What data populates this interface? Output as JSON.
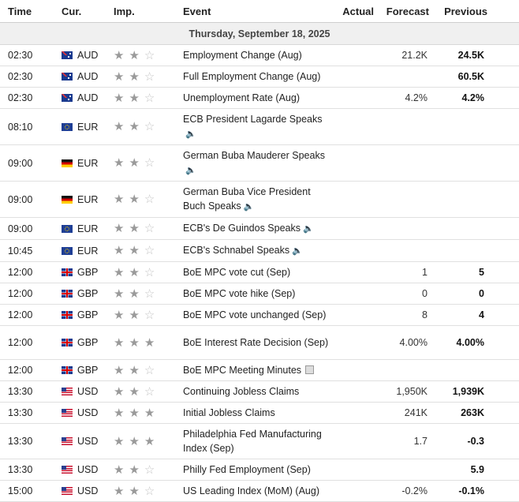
{
  "headers": {
    "time": "Time",
    "currency": "Cur.",
    "importance": "Imp.",
    "event": "Event",
    "actual": "Actual",
    "forecast": "Forecast",
    "previous": "Previous"
  },
  "date_label": "Thursday, September 18, 2025",
  "colors": {
    "date_bg": "#f0f0f0",
    "star_on": "#9a9a9a",
    "star_off": "#c4c4c4"
  },
  "rows": [
    {
      "time": "02:30",
      "flag": "au",
      "currency": "AUD",
      "stars": 2,
      "event": "Employment Change (Aug)",
      "icon": "",
      "actual": "",
      "forecast": "21.2K",
      "previous": "24.5K"
    },
    {
      "time": "02:30",
      "flag": "au",
      "currency": "AUD",
      "stars": 2,
      "event": "Full Employment Change (Aug)",
      "icon": "",
      "actual": "",
      "forecast": "",
      "previous": "60.5K"
    },
    {
      "time": "02:30",
      "flag": "au",
      "currency": "AUD",
      "stars": 2,
      "event": "Unemployment Rate (Aug)",
      "icon": "",
      "actual": "",
      "forecast": "4.2%",
      "previous": "4.2%"
    },
    {
      "time": "08:10",
      "flag": "eu",
      "currency": "EUR",
      "stars": 2,
      "event": "ECB President Lagarde Speaks",
      "icon": "speaker",
      "actual": "",
      "forecast": "",
      "previous": ""
    },
    {
      "time": "09:00",
      "flag": "de",
      "currency": "EUR",
      "stars": 2,
      "event": "German Buba Mauderer Speaks",
      "icon": "speaker",
      "actual": "",
      "forecast": "",
      "previous": ""
    },
    {
      "time": "09:00",
      "flag": "de",
      "currency": "EUR",
      "stars": 2,
      "event": "German Buba Vice President Buch Speaks",
      "icon": "speaker",
      "actual": "",
      "forecast": "",
      "previous": ""
    },
    {
      "time": "09:00",
      "flag": "eu",
      "currency": "EUR",
      "stars": 2,
      "event": "ECB's De Guindos Speaks",
      "icon": "speaker",
      "actual": "",
      "forecast": "",
      "previous": ""
    },
    {
      "time": "10:45",
      "flag": "eu",
      "currency": "EUR",
      "stars": 2,
      "event": "ECB's Schnabel Speaks",
      "icon": "speaker",
      "actual": "",
      "forecast": "",
      "previous": ""
    },
    {
      "time": "12:00",
      "flag": "gb",
      "currency": "GBP",
      "stars": 2,
      "event": "BoE MPC vote cut (Sep)",
      "icon": "",
      "actual": "",
      "forecast": "1",
      "previous": "5"
    },
    {
      "time": "12:00",
      "flag": "gb",
      "currency": "GBP",
      "stars": 2,
      "event": "BoE MPC vote hike (Sep)",
      "icon": "",
      "actual": "",
      "forecast": "0",
      "previous": "0"
    },
    {
      "time": "12:00",
      "flag": "gb",
      "currency": "GBP",
      "stars": 2,
      "event": "BoE MPC vote unchanged (Sep)",
      "icon": "",
      "actual": "",
      "forecast": "8",
      "previous": "4"
    },
    {
      "time": "12:00",
      "flag": "gb",
      "currency": "GBP",
      "stars": 3,
      "event": "BoE Interest Rate Decision (Sep)",
      "icon": "",
      "actual": "",
      "forecast": "4.00%",
      "previous": "4.00%"
    },
    {
      "time": "12:00",
      "flag": "gb",
      "currency": "GBP",
      "stars": 2,
      "event": "BoE MPC Meeting Minutes",
      "icon": "document",
      "actual": "",
      "forecast": "",
      "previous": ""
    },
    {
      "time": "13:30",
      "flag": "us",
      "currency": "USD",
      "stars": 2,
      "event": "Continuing Jobless Claims",
      "icon": "",
      "actual": "",
      "forecast": "1,950K",
      "previous": "1,939K"
    },
    {
      "time": "13:30",
      "flag": "us",
      "currency": "USD",
      "stars": 3,
      "event": "Initial Jobless Claims",
      "icon": "",
      "actual": "",
      "forecast": "241K",
      "previous": "263K"
    },
    {
      "time": "13:30",
      "flag": "us",
      "currency": "USD",
      "stars": 3,
      "event": "Philadelphia Fed Manufacturing Index (Sep)",
      "icon": "",
      "actual": "",
      "forecast": "1.7",
      "previous": "-0.3"
    },
    {
      "time": "13:30",
      "flag": "us",
      "currency": "USD",
      "stars": 2,
      "event": "Philly Fed Employment (Sep)",
      "icon": "",
      "actual": "",
      "forecast": "",
      "previous": "5.9"
    },
    {
      "time": "15:00",
      "flag": "us",
      "currency": "USD",
      "stars": 2,
      "event": "US Leading Index (MoM) (Aug)",
      "icon": "",
      "actual": "",
      "forecast": "-0.2%",
      "previous": "-0.1%"
    }
  ]
}
